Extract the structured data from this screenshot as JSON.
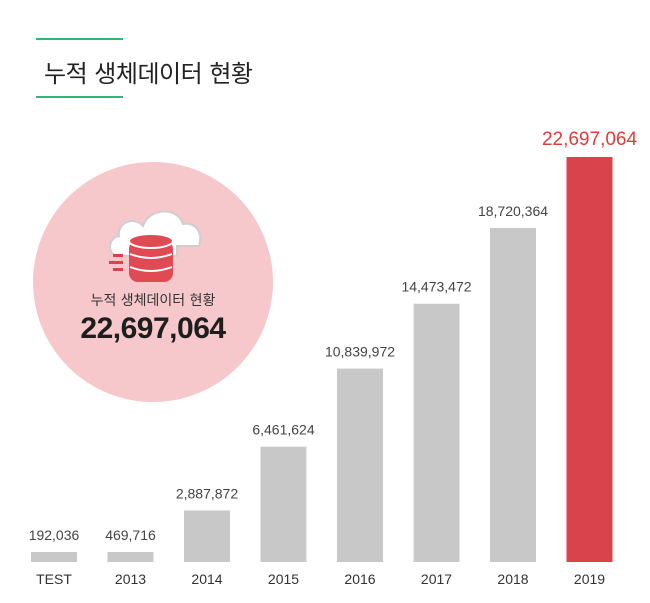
{
  "title": "누적 생체데이터 현황",
  "summary": {
    "label": "누적 생체데이터 현황",
    "value": "22,697,064",
    "icon": "cloud-database-icon"
  },
  "colors": {
    "accent_rule": "#35b47a",
    "bar_default": "#c8c8c8",
    "bar_highlight": "#d9434b",
    "highlight_label": "#e03c3c",
    "circle_bg": "#f6c8cb"
  },
  "chart_data": {
    "type": "bar",
    "categories": [
      "TEST",
      "2013",
      "2014",
      "2015",
      "2016",
      "2017",
      "2018",
      "2019"
    ],
    "values": [
      192036,
      469716,
      2887872,
      6461624,
      10839972,
      14473472,
      18720364,
      22697064
    ],
    "value_labels": [
      "192,036",
      "469,716",
      "2,887,872",
      "6,461,624",
      "10,839,972",
      "14,473,472",
      "18,720,364",
      "22,697,064"
    ],
    "highlight_index": 7,
    "title": "",
    "xlabel": "",
    "ylabel": "",
    "grid": false,
    "legend": "none"
  }
}
